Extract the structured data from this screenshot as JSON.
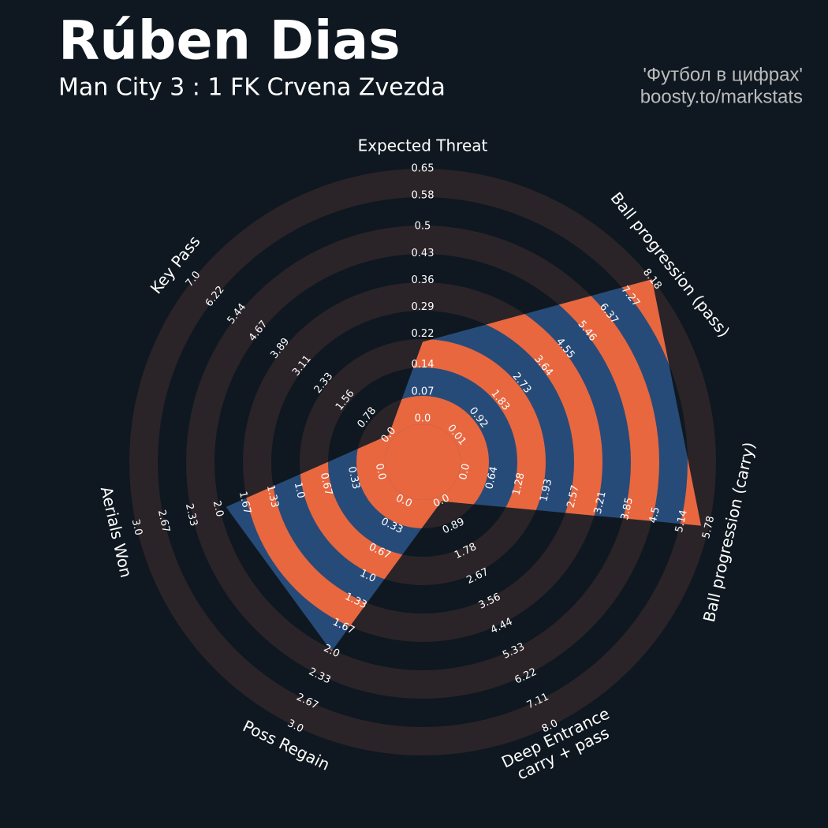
{
  "chart_data": {
    "type": "radar",
    "title": "Rúben Dias",
    "subtitle": "Man City 3 : 1 FK Crvena Zvezda",
    "annotations": [
      "'Футбол в цифрах'",
      "boosty.to/markstats"
    ],
    "categories": [
      "Expected Threat",
      "Ball progression (pass)",
      "Ball progression (carry)",
      "Deep Entrance\ncarry + pass",
      "Poss Regain",
      "Aerials Won",
      "Key Pass"
    ],
    "values": [
      0.2,
      8.18,
      5.6,
      0,
      2,
      1.9,
      0
    ],
    "color": "#274b78",
    "ring_color": "#e8673f",
    "rlims": [
      [
        0,
        0.65
      ],
      [
        0.01,
        8.18
      ],
      [
        0,
        5.78
      ],
      [
        0,
        8
      ],
      [
        0,
        3
      ],
      [
        0,
        3
      ],
      [
        0,
        7
      ]
    ],
    "rticks": [
      [
        {
          "value": 0,
          "label": "0.0"
        },
        0.07,
        0.14,
        0.22,
        0.29,
        0.36,
        0.43,
        0.5,
        0.58,
        0.65
      ],
      [
        0.01,
        0.92,
        1.83,
        2.73,
        3.64,
        4.55,
        5.46,
        6.37,
        7.27,
        8.18
      ],
      [
        {
          "value": 0,
          "label": "0.0"
        },
        0.64,
        1.28,
        1.93,
        2.57,
        3.21,
        3.85,
        4.5,
        5.14,
        5.78
      ],
      [
        {
          "value": 0,
          "label": "0.0"
        },
        0.89,
        1.78,
        2.67,
        3.56,
        4.44,
        5.33,
        6.22,
        7.11,
        {
          "value": 8,
          "label": "8.0"
        }
      ],
      [
        {
          "value": 0,
          "label": "0.0"
        },
        0.33,
        0.67,
        {
          "value": 1,
          "label": "1.0"
        },
        1.33,
        1.67,
        {
          "value": 2,
          "label": "2.0"
        },
        2.33,
        2.67,
        {
          "value": 3,
          "label": "3.0"
        }
      ],
      [
        {
          "value": 0,
          "label": "0.0"
        },
        0.33,
        0.67,
        {
          "value": 1,
          "label": "1.0"
        },
        1.33,
        1.67,
        {
          "value": 2,
          "label": "2.0"
        },
        2.33,
        2.67,
        {
          "value": 3,
          "label": "3.0"
        }
      ],
      [
        {
          "value": 0,
          "label": "0.0"
        },
        0.78,
        1.56,
        2.33,
        3.11,
        3.89,
        4.67,
        5.44,
        6.22,
        {
          "value": 7,
          "label": "7.0"
        }
      ]
    ]
  }
}
